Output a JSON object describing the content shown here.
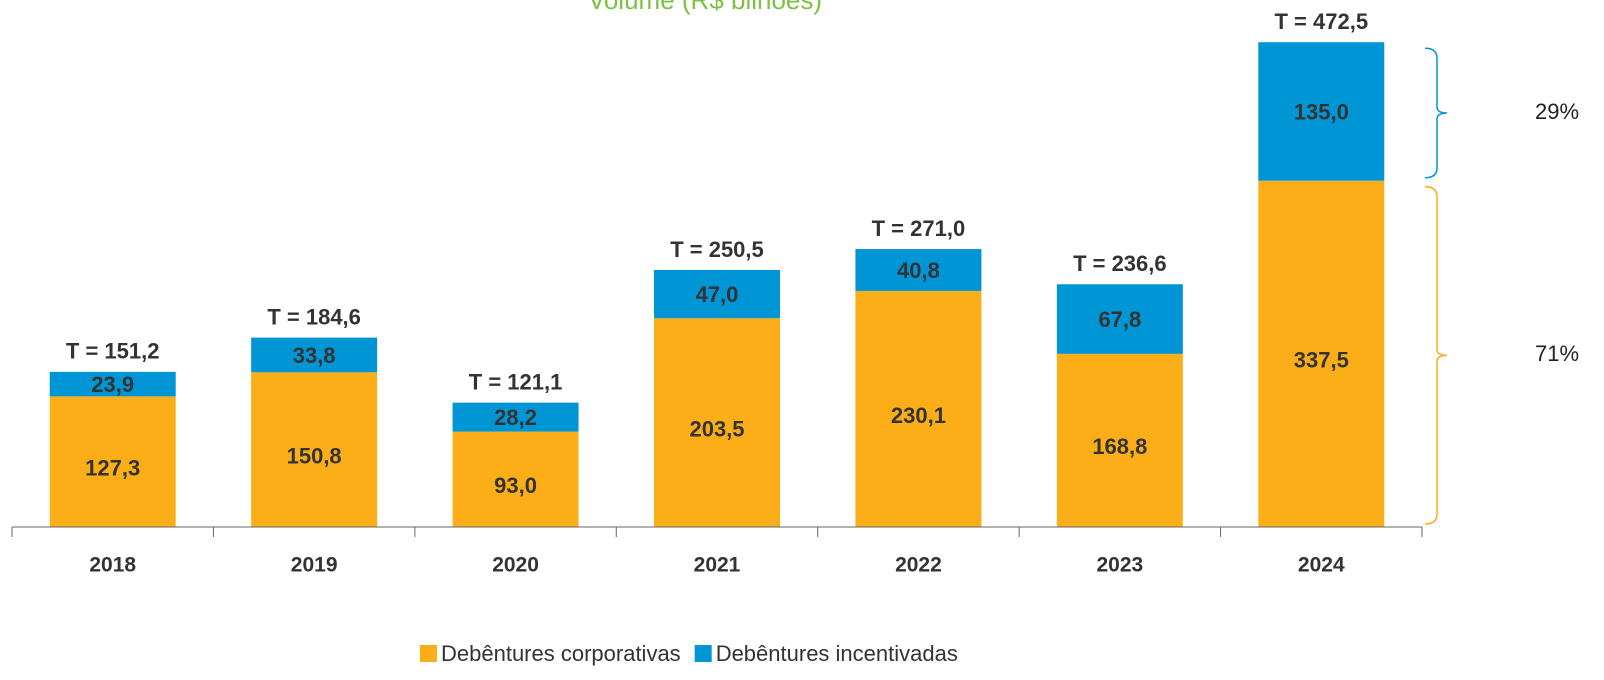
{
  "chart_data": {
    "type": "stacked_bar",
    "title": "Volume (R$ bilhões)",
    "categories": [
      "2018",
      "2019",
      "2020",
      "2021",
      "2022",
      "2023",
      "2024"
    ],
    "series": [
      {
        "name": "Debêntures corporativas",
        "color": "#FBAE17",
        "values": [
          127.3,
          150.8,
          93.0,
          203.5,
          230.1,
          168.8,
          337.5
        ],
        "value_labels": [
          "127,3",
          "150,8",
          "93,0",
          "203,5",
          "230,1",
          "168,8",
          "337,5"
        ]
      },
      {
        "name": "Debêntures incentivadas",
        "color": "#0096D6",
        "values": [
          23.9,
          33.8,
          28.2,
          47.0,
          40.8,
          67.8,
          135.0
        ],
        "value_labels": [
          "23,9",
          "33,8",
          "28,2",
          "47,0",
          "40,8",
          "67,8",
          "135,0"
        ]
      }
    ],
    "totals": {
      "values": [
        151.2,
        184.6,
        121.1,
        250.5,
        271.0,
        236.6,
        472.5
      ],
      "value_labels": [
        "T = 151,2",
        "T = 184,6",
        "T = 121,1",
        "T = 250,5",
        "T = 271,0",
        "T = 236,6",
        "T = 472,5"
      ]
    },
    "shares": [
      {
        "value": 71,
        "label": "71%"
      },
      {
        "value": 29,
        "label": "29%"
      }
    ],
    "ylim": [
      0,
      500
    ],
    "legend": "bottom"
  }
}
